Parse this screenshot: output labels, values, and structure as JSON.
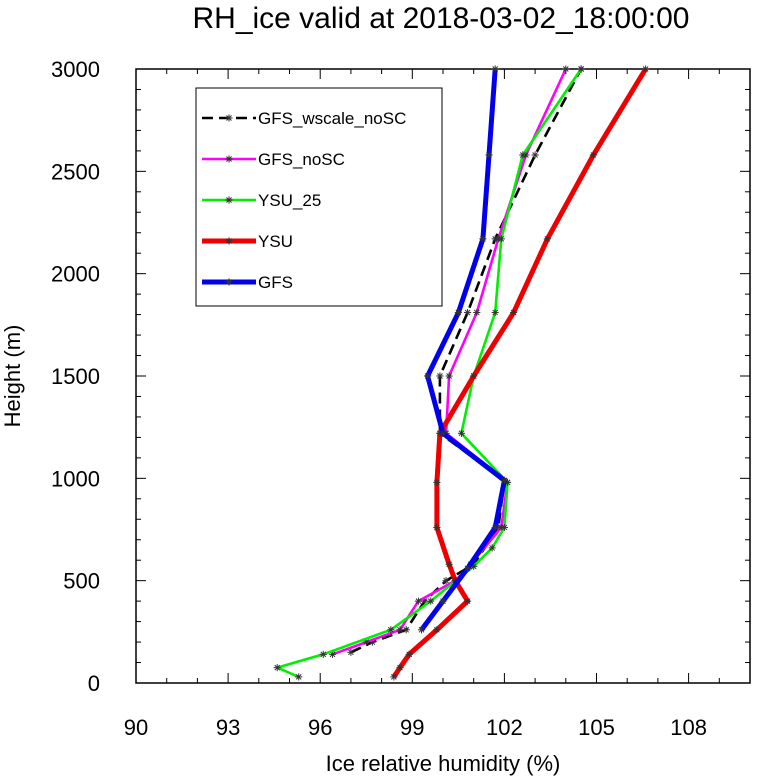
{
  "chart_data": {
    "type": "line",
    "title": "RH_ice valid at 2018-03-02_18:00:00",
    "xlabel": "Ice relative humidity (%)",
    "ylabel": "Height (m)",
    "xlim": [
      90,
      110
    ],
    "ylim": [
      0,
      3000
    ],
    "xticks": [
      90,
      93,
      96,
      99,
      102,
      105,
      108
    ],
    "yticks": [
      0,
      500,
      1000,
      1500,
      2000,
      2500,
      3000
    ],
    "grid": false,
    "legend_position": "top-left",
    "series": [
      {
        "name": "GFS_wscale_noSC",
        "color": "#000000",
        "dash": "dashed",
        "width": "medium",
        "points": [
          [
            97.0,
            150
          ],
          [
            97.7,
            200
          ],
          [
            98.8,
            260
          ],
          [
            99.4,
            400
          ],
          [
            100.1,
            500
          ],
          [
            101.0,
            580
          ],
          [
            101.8,
            760
          ],
          [
            102.0,
            990
          ],
          [
            99.9,
            1220
          ],
          [
            99.9,
            1500
          ],
          [
            100.8,
            1810
          ],
          [
            101.7,
            2170
          ],
          [
            103.0,
            2580
          ],
          [
            104.5,
            3000
          ]
        ]
      },
      {
        "name": "GFS_noSC",
        "color": "#ff00ff",
        "dash": "solid",
        "width": "medium",
        "points": [
          [
            96.4,
            140
          ],
          [
            97.5,
            200
          ],
          [
            98.6,
            260
          ],
          [
            99.2,
            400
          ],
          [
            100.4,
            500
          ],
          [
            100.9,
            580
          ],
          [
            101.9,
            760
          ],
          [
            102.1,
            980
          ],
          [
            100.1,
            1220
          ],
          [
            100.2,
            1500
          ],
          [
            101.1,
            1810
          ],
          [
            101.8,
            2170
          ],
          [
            102.7,
            2580
          ],
          [
            104.0,
            3000
          ]
        ]
      },
      {
        "name": "YSU_25",
        "color": "#00ee00",
        "dash": "solid",
        "width": "medium",
        "points": [
          [
            95.3,
            30
          ],
          [
            94.6,
            75
          ],
          [
            96.1,
            140
          ],
          [
            98.3,
            260
          ],
          [
            99.6,
            400
          ],
          [
            101.0,
            570
          ],
          [
            101.6,
            660
          ],
          [
            102.0,
            760
          ],
          [
            102.1,
            980
          ],
          [
            100.6,
            1220
          ],
          [
            101.0,
            1500
          ],
          [
            101.7,
            1810
          ],
          [
            101.9,
            2170
          ],
          [
            102.6,
            2580
          ],
          [
            104.5,
            3000
          ]
        ]
      },
      {
        "name": "YSU",
        "color": "#ee0000",
        "dash": "solid",
        "width": "thick",
        "points": [
          [
            98.4,
            30
          ],
          [
            98.6,
            75
          ],
          [
            98.9,
            140
          ],
          [
            99.8,
            260
          ],
          [
            100.8,
            400
          ],
          [
            100.4,
            500
          ],
          [
            100.2,
            580
          ],
          [
            99.8,
            760
          ],
          [
            99.8,
            980
          ],
          [
            99.9,
            1220
          ],
          [
            101.0,
            1500
          ],
          [
            102.3,
            1810
          ],
          [
            103.4,
            2170
          ],
          [
            104.9,
            2580
          ],
          [
            106.6,
            3000
          ]
        ]
      },
      {
        "name": "GFS",
        "color": "#0000ee",
        "dash": "solid",
        "width": "thick",
        "points": [
          [
            99.3,
            260
          ],
          [
            100.0,
            400
          ],
          [
            100.8,
            560
          ],
          [
            101.7,
            760
          ],
          [
            102.0,
            990
          ],
          [
            100.0,
            1220
          ],
          [
            99.5,
            1500
          ],
          [
            100.5,
            1810
          ],
          [
            101.3,
            2170
          ],
          [
            101.5,
            2580
          ],
          [
            101.7,
            3000
          ]
        ]
      }
    ]
  }
}
